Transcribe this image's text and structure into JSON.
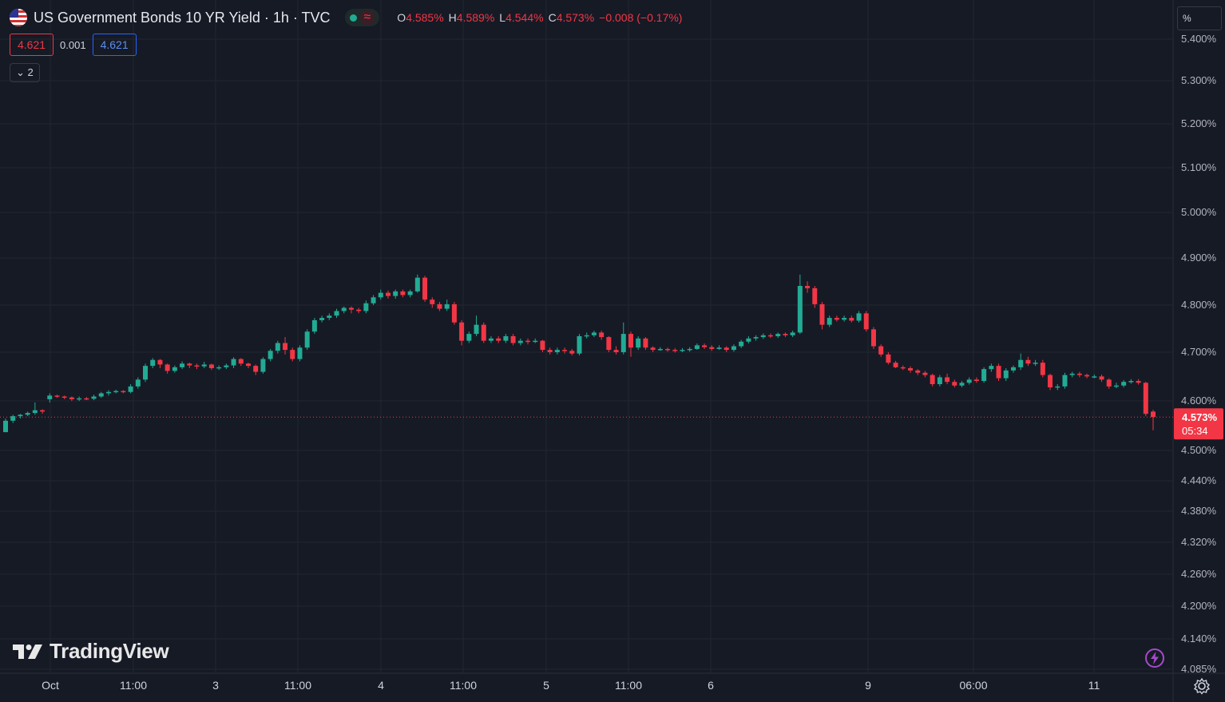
{
  "header": {
    "title": "US Government Bonds 10 YR Yield · 1h · TVC",
    "ohlc": {
      "o_label": "O",
      "o_value": "4.585%",
      "h_label": "H",
      "h_value": "4.589%",
      "l_label": "L",
      "l_value": "4.544%",
      "c_label": "C",
      "c_value": "4.573%",
      "change": "−0.008 (−0.17%)"
    },
    "market_status_icon": "market-open-dot",
    "wave_symbol": "≈"
  },
  "trade_boxes": {
    "sell": "4.621",
    "spread": "0.001",
    "buy": "4.621"
  },
  "indicator_toggle": {
    "label": "2"
  },
  "price_axis": {
    "unit": "%",
    "labels": [
      "5.400%",
      "5.300%",
      "5.200%",
      "5.100%",
      "5.000%",
      "4.900%",
      "4.800%",
      "4.700%",
      "4.600%",
      "4.500%",
      "4.440%",
      "4.380%",
      "4.320%",
      "4.260%",
      "4.200%",
      "4.140%",
      "4.085%"
    ],
    "current_price": "4.573%",
    "countdown": "05:34"
  },
  "time_axis": {
    "labels": [
      "Oct",
      "11:00",
      "3",
      "11:00",
      "4",
      "11:00",
      "5",
      "11:00",
      "6",
      "9",
      "06:00",
      "11"
    ]
  },
  "branding": {
    "logo_text": "TradingView"
  },
  "colors": {
    "up": "#22ab94",
    "down": "#f23645",
    "background": "#161a25",
    "grid": "#22262f"
  },
  "chart_data": {
    "type": "candlestick",
    "title": "US Government Bonds 10 YR Yield · 1h · TVC",
    "interval": "1h",
    "unit": "%",
    "x_labels": [
      "Oct",
      "11:00",
      "3",
      "11:00",
      "4",
      "11:00",
      "5",
      "11:00",
      "6",
      "9",
      "06:00",
      "11"
    ],
    "last_price": 4.573,
    "candles": [
      [
        4.54,
        4.565,
        4.54,
        4.57
      ],
      [
        4.565,
        4.575,
        4.56,
        4.578
      ],
      [
        4.575,
        4.578,
        4.57,
        4.58
      ],
      [
        4.578,
        4.582,
        4.575,
        4.585
      ],
      [
        4.582,
        4.588,
        4.578,
        4.605
      ],
      [
        4.588,
        4.585,
        4.58,
        4.59
      ],
      [
        4.612,
        4.62,
        4.605,
        4.625
      ],
      [
        4.62,
        4.618,
        4.615,
        4.622
      ],
      [
        4.618,
        4.616,
        4.612,
        4.62
      ],
      [
        4.616,
        4.612,
        4.608,
        4.618
      ],
      [
        4.612,
        4.614,
        4.608,
        4.618
      ],
      [
        4.614,
        4.613,
        4.61,
        4.617
      ],
      [
        4.613,
        4.618,
        4.61,
        4.622
      ],
      [
        4.618,
        4.625,
        4.615,
        4.628
      ],
      [
        4.625,
        4.628,
        4.62,
        4.632
      ],
      [
        4.628,
        4.63,
        4.625,
        4.633
      ],
      [
        4.63,
        4.628,
        4.625,
        4.632
      ],
      [
        4.628,
        4.64,
        4.625,
        4.645
      ],
      [
        4.64,
        4.655,
        4.635,
        4.66
      ],
      [
        4.655,
        4.685,
        4.65,
        4.69
      ],
      [
        4.685,
        4.698,
        4.68,
        4.702
      ],
      [
        4.698,
        4.688,
        4.68,
        4.7
      ],
      [
        4.688,
        4.674,
        4.668,
        4.69
      ],
      [
        4.674,
        4.682,
        4.67,
        4.686
      ],
      [
        4.682,
        4.69,
        4.678,
        4.695
      ],
      [
        4.69,
        4.686,
        4.68,
        4.692
      ],
      [
        4.686,
        4.684,
        4.678,
        4.69
      ],
      [
        4.684,
        4.688,
        4.68,
        4.694
      ],
      [
        4.688,
        4.68,
        4.676,
        4.69
      ],
      [
        4.68,
        4.682,
        4.676,
        4.686
      ],
      [
        4.682,
        4.686,
        4.678,
        4.69
      ],
      [
        4.686,
        4.7,
        4.68,
        4.704
      ],
      [
        4.7,
        4.69,
        4.685,
        4.702
      ],
      [
        4.69,
        4.685,
        4.68,
        4.692
      ],
      [
        4.685,
        4.672,
        4.665,
        4.688
      ],
      [
        4.672,
        4.7,
        4.668,
        4.704
      ],
      [
        4.7,
        4.718,
        4.695,
        4.722
      ],
      [
        4.718,
        4.735,
        4.712,
        4.74
      ],
      [
        4.735,
        4.72,
        4.71,
        4.748
      ],
      [
        4.72,
        4.7,
        4.695,
        4.725
      ],
      [
        4.7,
        4.725,
        4.695,
        4.73
      ],
      [
        4.725,
        4.76,
        4.72,
        4.765
      ],
      [
        4.76,
        4.785,
        4.755,
        4.79
      ],
      [
        4.785,
        4.79,
        4.78,
        4.795
      ],
      [
        4.79,
        4.795,
        4.785,
        4.8
      ],
      [
        4.795,
        4.805,
        4.79,
        4.81
      ],
      [
        4.805,
        4.812,
        4.8,
        4.815
      ],
      [
        4.812,
        4.808,
        4.8,
        4.815
      ],
      [
        4.808,
        4.805,
        4.8,
        4.812
      ],
      [
        4.805,
        4.822,
        4.8,
        4.828
      ],
      [
        4.822,
        4.835,
        4.818,
        4.84
      ],
      [
        4.835,
        4.845,
        4.83,
        4.852
      ],
      [
        4.845,
        4.838,
        4.832,
        4.85
      ],
      [
        4.838,
        4.848,
        4.832,
        4.852
      ],
      [
        4.848,
        4.84,
        4.835,
        4.852
      ],
      [
        4.84,
        4.848,
        4.835,
        4.852
      ],
      [
        4.848,
        4.878,
        4.845,
        4.885
      ],
      [
        4.878,
        4.83,
        4.825,
        4.882
      ],
      [
        4.83,
        4.82,
        4.812,
        4.835
      ],
      [
        4.82,
        4.81,
        4.805,
        4.825
      ],
      [
        4.81,
        4.82,
        4.805,
        4.83
      ],
      [
        4.82,
        4.78,
        4.775,
        4.825
      ],
      [
        4.78,
        4.74,
        4.73,
        4.785
      ],
      [
        4.74,
        4.755,
        4.735,
        4.76
      ],
      [
        4.755,
        4.775,
        4.75,
        4.795
      ],
      [
        4.775,
        4.74,
        4.735,
        4.78
      ],
      [
        4.74,
        4.745,
        4.735,
        4.75
      ],
      [
        4.745,
        4.74,
        4.735,
        4.75
      ],
      [
        4.74,
        4.75,
        4.735,
        4.755
      ],
      [
        4.75,
        4.735,
        4.73,
        4.755
      ],
      [
        4.735,
        4.74,
        4.73,
        4.745
      ],
      [
        4.74,
        4.738,
        4.732,
        4.745
      ],
      [
        4.738,
        4.74,
        4.735,
        4.745
      ],
      [
        4.74,
        4.72,
        4.715,
        4.742
      ],
      [
        4.72,
        4.715,
        4.71,
        4.725
      ],
      [
        4.715,
        4.72,
        4.71,
        4.725
      ],
      [
        4.72,
        4.718,
        4.712,
        4.725
      ],
      [
        4.718,
        4.712,
        4.708,
        4.722
      ],
      [
        4.712,
        4.75,
        4.708,
        4.755
      ],
      [
        4.75,
        4.752,
        4.745,
        4.758
      ],
      [
        4.752,
        4.758,
        4.748,
        4.762
      ],
      [
        4.758,
        4.748,
        4.742,
        4.762
      ],
      [
        4.748,
        4.72,
        4.715,
        4.75
      ],
      [
        4.72,
        4.715,
        4.71,
        4.728
      ],
      [
        4.715,
        4.755,
        4.71,
        4.78
      ],
      [
        4.755,
        4.725,
        4.705,
        4.76
      ],
      [
        4.725,
        4.745,
        4.72,
        4.75
      ],
      [
        4.745,
        4.725,
        4.72,
        4.748
      ],
      [
        4.725,
        4.72,
        4.715,
        4.728
      ],
      [
        4.72,
        4.722,
        4.718,
        4.726
      ],
      [
        4.722,
        4.72,
        4.716,
        4.725
      ],
      [
        4.72,
        4.718,
        4.714,
        4.724
      ],
      [
        4.718,
        4.72,
        4.715,
        4.724
      ],
      [
        4.72,
        4.722,
        4.716,
        4.726
      ],
      [
        4.722,
        4.73,
        4.72,
        4.734
      ],
      [
        4.73,
        4.726,
        4.722,
        4.734
      ],
      [
        4.726,
        4.722,
        4.718,
        4.73
      ],
      [
        4.722,
        4.725,
        4.72,
        4.73
      ],
      [
        4.725,
        4.72,
        4.715,
        4.728
      ],
      [
        4.72,
        4.728,
        4.716,
        4.732
      ],
      [
        4.728,
        4.738,
        4.724,
        4.742
      ],
      [
        4.738,
        4.745,
        4.734,
        4.75
      ],
      [
        4.745,
        4.748,
        4.74,
        4.752
      ],
      [
        4.748,
        4.752,
        4.744,
        4.756
      ],
      [
        4.752,
        4.75,
        4.746,
        4.756
      ],
      [
        4.75,
        4.755,
        4.746,
        4.758
      ],
      [
        4.755,
        4.752,
        4.748,
        4.758
      ],
      [
        4.752,
        4.758,
        4.748,
        4.762
      ],
      [
        4.758,
        4.86,
        4.755,
        4.885
      ],
      [
        4.86,
        4.855,
        4.845,
        4.87
      ],
      [
        4.855,
        4.82,
        4.812,
        4.86
      ],
      [
        4.82,
        4.775,
        4.765,
        4.825
      ],
      [
        4.775,
        4.79,
        4.77,
        4.795
      ],
      [
        4.79,
        4.786,
        4.782,
        4.795
      ],
      [
        4.786,
        4.79,
        4.782,
        4.795
      ],
      [
        4.79,
        4.784,
        4.78,
        4.795
      ],
      [
        4.784,
        4.8,
        4.78,
        4.805
      ],
      [
        4.8,
        4.765,
        4.76,
        4.805
      ],
      [
        4.765,
        4.728,
        4.722,
        4.77
      ],
      [
        4.728,
        4.71,
        4.705,
        4.732
      ],
      [
        4.71,
        4.692,
        4.688,
        4.715
      ],
      [
        4.692,
        4.682,
        4.68,
        4.696
      ],
      [
        4.682,
        4.68,
        4.676,
        4.686
      ],
      [
        4.68,
        4.675,
        4.67,
        4.684
      ],
      [
        4.675,
        4.67,
        4.665,
        4.678
      ],
      [
        4.67,
        4.665,
        4.66,
        4.674
      ],
      [
        4.665,
        4.645,
        4.64,
        4.668
      ],
      [
        4.645,
        4.66,
        4.64,
        4.665
      ],
      [
        4.66,
        4.65,
        4.645,
        4.668
      ],
      [
        4.65,
        4.642,
        4.638,
        4.655
      ],
      [
        4.642,
        4.648,
        4.638,
        4.652
      ],
      [
        4.648,
        4.655,
        4.644,
        4.66
      ],
      [
        4.655,
        4.652,
        4.648,
        4.66
      ],
      [
        4.652,
        4.678,
        4.648,
        4.682
      ],
      [
        4.678,
        4.685,
        4.672,
        4.69
      ],
      [
        4.685,
        4.658,
        4.652,
        4.69
      ],
      [
        4.658,
        4.675,
        4.652,
        4.68
      ],
      [
        4.675,
        4.682,
        4.67,
        4.686
      ],
      [
        4.682,
        4.698,
        4.676,
        4.712
      ],
      [
        4.698,
        4.69,
        4.685,
        4.705
      ],
      [
        4.69,
        4.692,
        4.685,
        4.698
      ],
      [
        4.692,
        4.665,
        4.66,
        4.698
      ],
      [
        4.665,
        4.638,
        4.632,
        4.668
      ],
      [
        4.638,
        4.64,
        4.632,
        4.645
      ],
      [
        4.64,
        4.665,
        4.635,
        4.67
      ],
      [
        4.665,
        4.668,
        4.66,
        4.672
      ],
      [
        4.668,
        4.665,
        4.66,
        4.672
      ],
      [
        4.665,
        4.662,
        4.658,
        4.668
      ],
      [
        4.662,
        4.662,
        4.658,
        4.666
      ],
      [
        4.662,
        4.655,
        4.65,
        4.666
      ],
      [
        4.655,
        4.64,
        4.635,
        4.658
      ],
      [
        4.64,
        4.642,
        4.636,
        4.648
      ],
      [
        4.642,
        4.65,
        4.638,
        4.654
      ],
      [
        4.65,
        4.652,
        4.646,
        4.656
      ],
      [
        4.652,
        4.648,
        4.644,
        4.656
      ],
      [
        4.648,
        4.58,
        4.575,
        4.65
      ],
      [
        4.585,
        4.573,
        4.544,
        4.589
      ]
    ]
  }
}
